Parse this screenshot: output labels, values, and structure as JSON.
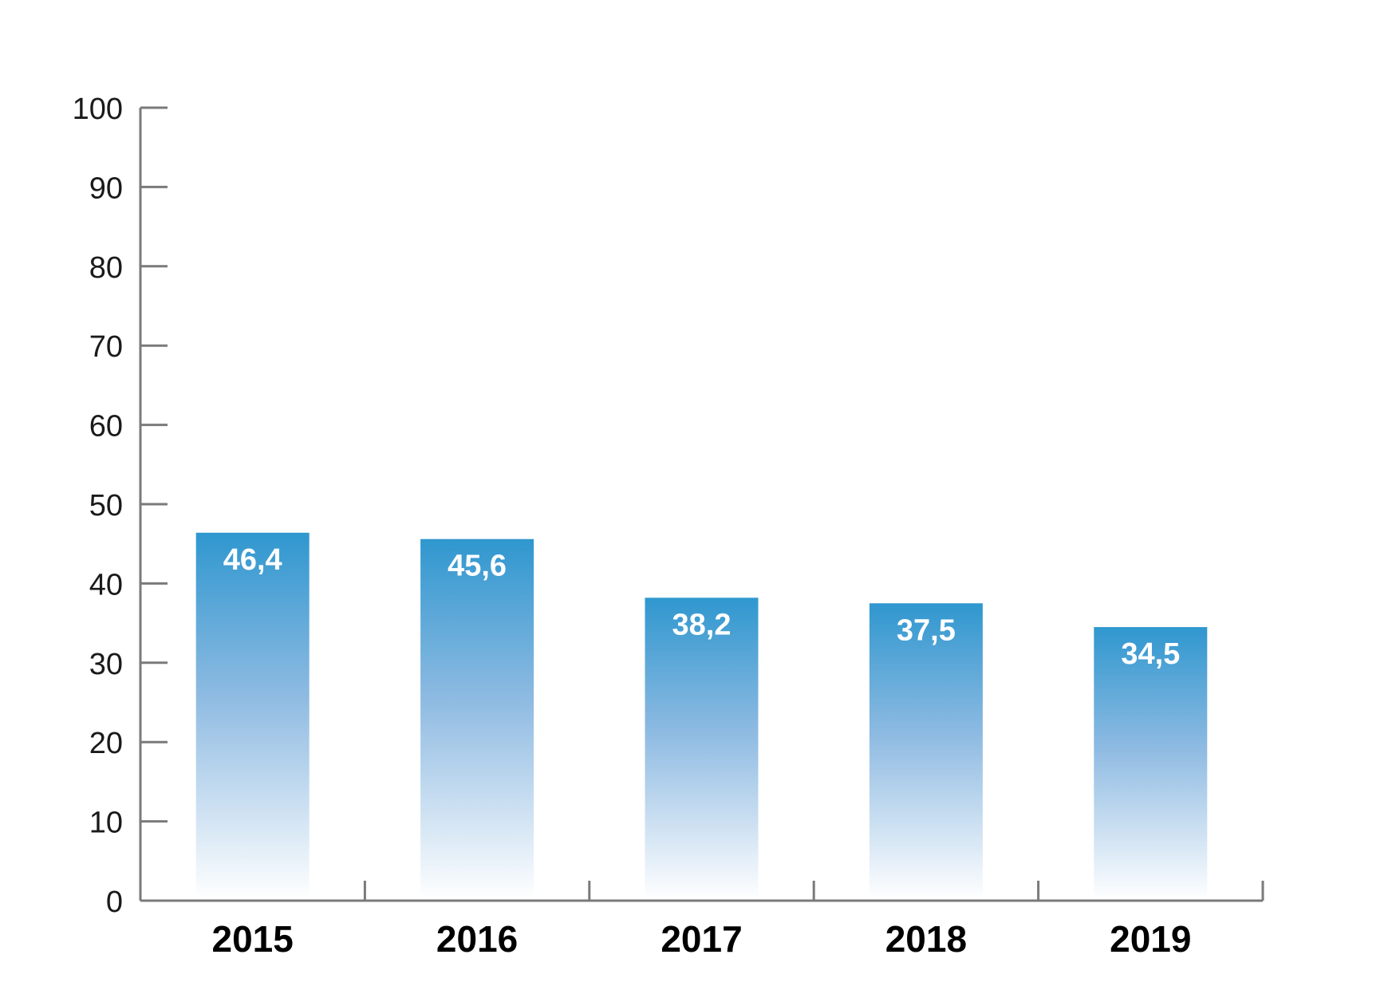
{
  "chart_data": {
    "type": "bar",
    "categories": [
      "2015",
      "2016",
      "2017",
      "2018",
      "2019"
    ],
    "values": [
      46.4,
      45.6,
      38.2,
      37.5,
      34.5
    ],
    "value_labels": [
      "46,4",
      "45,6",
      "38,2",
      "37,5",
      "34,5"
    ],
    "title": "",
    "xlabel": "",
    "ylabel": "",
    "ylim": [
      0,
      100
    ],
    "yticks": [
      0,
      10,
      20,
      30,
      40,
      50,
      60,
      70,
      80,
      90,
      100
    ],
    "ytick_labels": [
      "0",
      "10",
      "20",
      "30",
      "40",
      "50",
      "60",
      "70",
      "80",
      "90",
      "100"
    ],
    "grid": false,
    "legend": "none"
  },
  "colors": {
    "bar_top": "#2f97cf",
    "bar_mid": "#8fbbe2",
    "bar_bottom": "#ffffff",
    "axis": "#7a7a7a",
    "data_label": "#ffffff",
    "tick_label": "#1a1a1a",
    "category_label": "#000000"
  }
}
